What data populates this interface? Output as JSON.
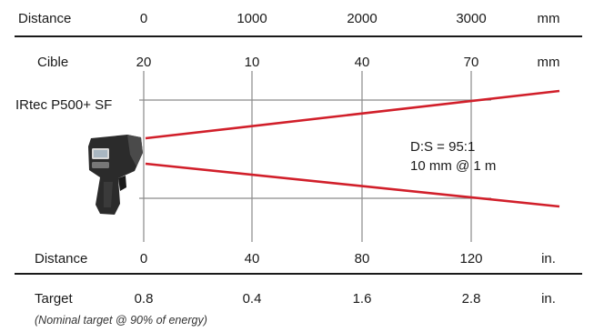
{
  "colors": {
    "beam": "#d11f2a",
    "rule": "#1a1a1a",
    "guide": "#8a8a8a",
    "text": "#1a1a1a"
  },
  "device": {
    "label": "IRtec P500+ SF",
    "icon": "infrared-thermometer-gun-icon"
  },
  "spec": {
    "ratio": "D:S = 95:1",
    "spot": "10 mm @ 1 m"
  },
  "rows": {
    "distance_mm": {
      "label": "Distance",
      "unit": "mm",
      "values": [
        "0",
        "1000",
        "2000",
        "3000"
      ]
    },
    "target_mm": {
      "label": "Cible",
      "unit": "mm",
      "values": [
        "20",
        "10",
        "40",
        "70"
      ]
    },
    "distance_in": {
      "label": "Distance",
      "unit": "in.",
      "values": [
        "0",
        "40",
        "80",
        "120"
      ]
    },
    "target_in": {
      "label": "Target",
      "unit": "in.",
      "values": [
        "0.8",
        "0.4",
        "1.6",
        "2.8"
      ]
    }
  },
  "footnote": "(Nominal target @ 90% of energy)"
}
